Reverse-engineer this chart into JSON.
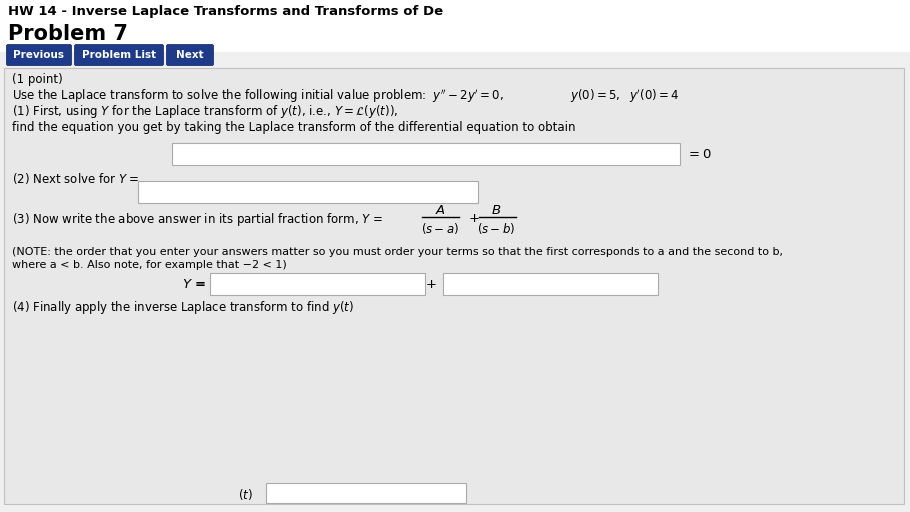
{
  "bg_color": "#f0f0f0",
  "white": "#ffffff",
  "mid_blue": "#1e3a8a",
  "content_bg": "#e8e8e8",
  "border_color": "#aaaaaa",
  "text_color": "#000000",
  "title_top": "HW 14 - Inverse Laplace Transforms and Transforms of De",
  "title_problem": "Problem 7",
  "btn_labels": [
    "Previous",
    "Problem List",
    "Next"
  ],
  "point_text": "(1 point)",
  "problem_text": "Use the Laplace transform to solve the following initial value problem:",
  "step1_line1": "(1) First, using Y for the Laplace transform of y(t), i.e., Y = ℒ(y(t)),",
  "step1_line2": "find the equation you get by taking the Laplace transform of the differential equation to obtain",
  "step2_text": "(2) Next solve for Y =",
  "step3_text": "(3) Now write the above answer in its partial fraction form, Y =",
  "note_line1": "(NOTE: the order that you enter your answers matter so you must order your terms so that the first corresponds to a and the second to b,",
  "note_line2": "where a < b. Also note, for example that −2 < 1)",
  "step4_text": "(4) Finally apply the inverse Laplace transform to find y(t)"
}
